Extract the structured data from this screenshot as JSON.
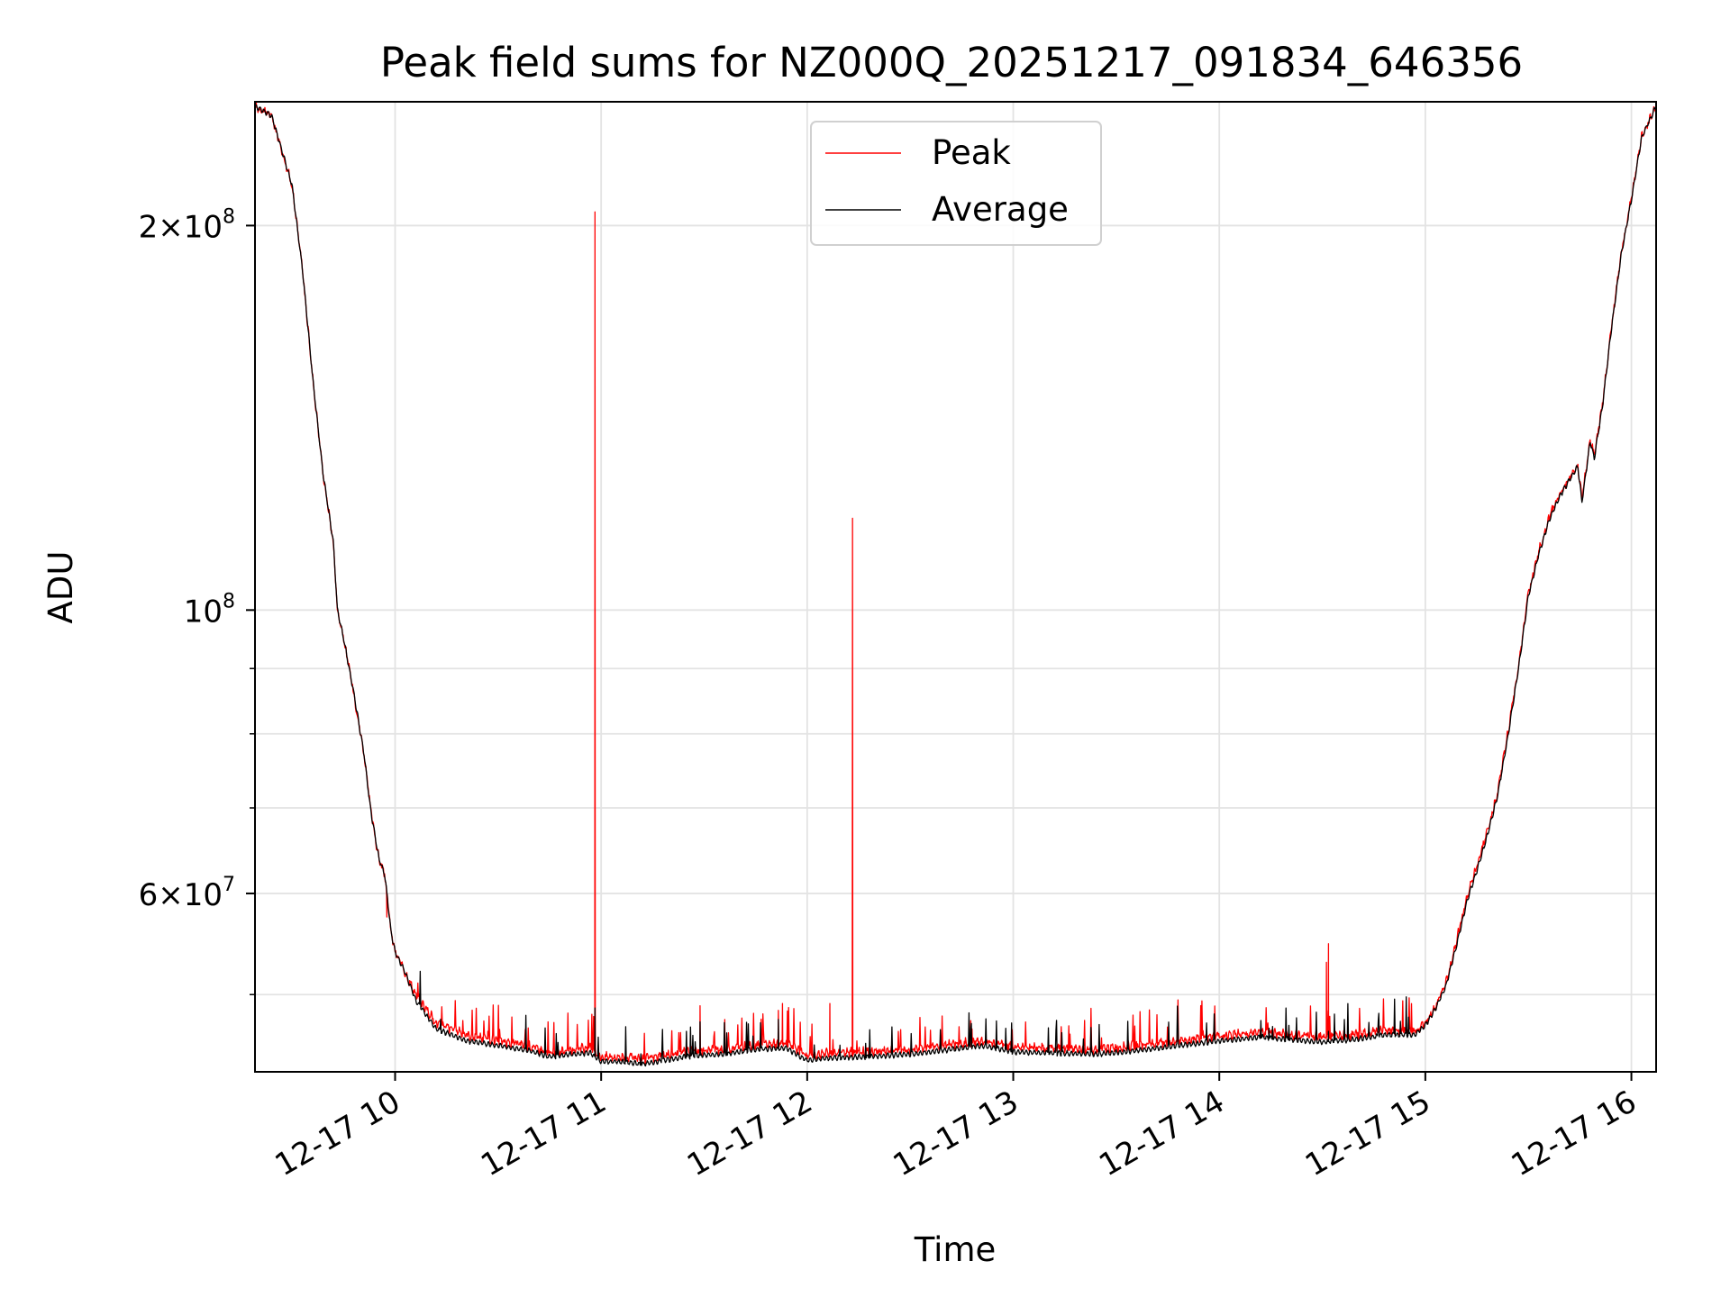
{
  "chart_data": {
    "type": "line",
    "title": "Peak field sums for NZ000Q_20251217_091834_646356",
    "xlabel": "Time",
    "ylabel": "ADU",
    "y_scale": "log",
    "xlim_hours": [
      9.32,
      16.12
    ],
    "ylim": [
      43500000,
      250000000
    ],
    "grid": true,
    "legend_position": "upper-center",
    "x_ticks": [
      {
        "hour": 10,
        "label": "12-17 10"
      },
      {
        "hour": 11,
        "label": "12-17 11"
      },
      {
        "hour": 12,
        "label": "12-17 12"
      },
      {
        "hour": 13,
        "label": "12-17 13"
      },
      {
        "hour": 14,
        "label": "12-17 14"
      },
      {
        "hour": 15,
        "label": "12-17 15"
      },
      {
        "hour": 16,
        "label": "12-17 16"
      }
    ],
    "y_ticks": [
      {
        "value": 200000000,
        "mantissa": "2×10",
        "exponent": "8"
      },
      {
        "value": 100000000,
        "mantissa": "10",
        "exponent": "8"
      },
      {
        "value": 60000000,
        "mantissa": "6×10",
        "exponent": "7"
      }
    ],
    "y_minor_ticks": [
      50000000,
      70000000,
      80000000,
      90000000
    ],
    "series": [
      {
        "name": "Peak",
        "color": "#ff0000",
        "baseline_points": [
          [
            9.32,
            248000000
          ],
          [
            9.4,
            244000000
          ],
          [
            9.5,
            215000000
          ],
          [
            9.55,
            185000000
          ],
          [
            9.6,
            152000000
          ],
          [
            9.65,
            128000000
          ],
          [
            9.7,
            113000000
          ],
          [
            9.72,
            100000000
          ],
          [
            9.75,
            95000000
          ],
          [
            9.8,
            86000000
          ],
          [
            9.85,
            77000000
          ],
          [
            9.88,
            70000000
          ],
          [
            9.92,
            64000000
          ],
          [
            9.95,
            62000000
          ],
          [
            9.98,
            56000000
          ],
          [
            10.0,
            54000000
          ],
          [
            10.05,
            52000000
          ],
          [
            10.1,
            50000000
          ],
          [
            10.2,
            47500000
          ],
          [
            10.35,
            46500000
          ],
          [
            10.5,
            46000000
          ],
          [
            10.65,
            45600000
          ],
          [
            10.75,
            45000000
          ],
          [
            10.85,
            45300000
          ],
          [
            10.95,
            45400000
          ],
          [
            11.0,
            44700000
          ],
          [
            11.1,
            44700000
          ],
          [
            11.2,
            44500000
          ],
          [
            11.3,
            44800000
          ],
          [
            11.45,
            45200000
          ],
          [
            11.6,
            45300000
          ],
          [
            11.75,
            45700000
          ],
          [
            11.9,
            45800000
          ],
          [
            12.0,
            44800000
          ],
          [
            12.1,
            45000000
          ],
          [
            12.3,
            45100000
          ],
          [
            12.5,
            45300000
          ],
          [
            12.7,
            45700000
          ],
          [
            12.85,
            46000000
          ],
          [
            13.0,
            45500000
          ],
          [
            13.2,
            45400000
          ],
          [
            13.4,
            45300000
          ],
          [
            13.6,
            45600000
          ],
          [
            13.8,
            46000000
          ],
          [
            14.0,
            46400000
          ],
          [
            14.2,
            46700000
          ],
          [
            14.35,
            46500000
          ],
          [
            14.5,
            46300000
          ],
          [
            14.65,
            46500000
          ],
          [
            14.8,
            46900000
          ],
          [
            14.95,
            46800000
          ],
          [
            15.0,
            47500000
          ],
          [
            15.05,
            49000000
          ],
          [
            15.1,
            51000000
          ],
          [
            15.15,
            55000000
          ],
          [
            15.2,
            59500000
          ],
          [
            15.25,
            63000000
          ],
          [
            15.3,
            67000000
          ],
          [
            15.35,
            72000000
          ],
          [
            15.4,
            80000000
          ],
          [
            15.45,
            90000000
          ],
          [
            15.5,
            103000000
          ],
          [
            15.55,
            111000000
          ],
          [
            15.6,
            118000000
          ],
          [
            15.65,
            123000000
          ],
          [
            15.7,
            127000000
          ],
          [
            15.74,
            130000000
          ],
          [
            15.76,
            122000000
          ],
          [
            15.8,
            136000000
          ],
          [
            15.82,
            132000000
          ],
          [
            15.86,
            145000000
          ],
          [
            15.9,
            165000000
          ],
          [
            15.95,
            190000000
          ],
          [
            16.0,
            210000000
          ],
          [
            16.05,
            235000000
          ],
          [
            16.12,
            248000000
          ]
        ],
        "spikes": [
          [
            9.96,
            57500000
          ],
          [
            10.45,
            46800000
          ],
          [
            10.97,
            205000000
          ],
          [
            11.48,
            49000000
          ],
          [
            11.6,
            47800000
          ],
          [
            11.86,
            48600000
          ],
          [
            11.88,
            49200000
          ],
          [
            12.11,
            49200000
          ],
          [
            12.22,
            118000000
          ],
          [
            12.8,
            47000000
          ],
          [
            14.52,
            53000000
          ],
          [
            14.53,
            54800000
          ]
        ]
      },
      {
        "name": "Average",
        "color": "#000000",
        "baseline_points": [
          [
            9.32,
            248000000
          ],
          [
            9.4,
            244000000
          ],
          [
            9.5,
            215000000
          ],
          [
            9.55,
            185000000
          ],
          [
            9.6,
            152000000
          ],
          [
            9.65,
            128000000
          ],
          [
            9.7,
            113000000
          ],
          [
            9.72,
            100000000
          ],
          [
            9.75,
            95000000
          ],
          [
            9.8,
            86000000
          ],
          [
            9.85,
            77000000
          ],
          [
            9.88,
            70000000
          ],
          [
            9.92,
            64000000
          ],
          [
            9.95,
            62000000
          ],
          [
            9.98,
            56000000
          ],
          [
            10.0,
            54000000
          ],
          [
            10.05,
            52000000
          ],
          [
            10.1,
            49500000
          ],
          [
            10.2,
            47000000
          ],
          [
            10.35,
            46000000
          ],
          [
            10.5,
            45600000
          ],
          [
            10.65,
            45200000
          ],
          [
            10.75,
            44700000
          ],
          [
            10.85,
            44900000
          ],
          [
            10.95,
            45000000
          ],
          [
            11.0,
            44300000
          ],
          [
            11.1,
            44300000
          ],
          [
            11.2,
            44100000
          ],
          [
            11.3,
            44400000
          ],
          [
            11.45,
            44800000
          ],
          [
            11.6,
            44900000
          ],
          [
            11.75,
            45300000
          ],
          [
            11.9,
            45400000
          ],
          [
            12.0,
            44400000
          ],
          [
            12.1,
            44600000
          ],
          [
            12.3,
            44700000
          ],
          [
            12.5,
            44900000
          ],
          [
            12.7,
            45300000
          ],
          [
            12.85,
            45600000
          ],
          [
            13.0,
            45100000
          ],
          [
            13.2,
            45000000
          ],
          [
            13.4,
            44900000
          ],
          [
            13.6,
            45200000
          ],
          [
            13.8,
            45600000
          ],
          [
            14.0,
            46000000
          ],
          [
            14.2,
            46300000
          ],
          [
            14.35,
            46100000
          ],
          [
            14.5,
            45900000
          ],
          [
            14.65,
            46100000
          ],
          [
            14.8,
            46500000
          ],
          [
            14.95,
            46500000
          ],
          [
            15.0,
            47300000
          ],
          [
            15.05,
            48800000
          ],
          [
            15.1,
            50800000
          ],
          [
            15.15,
            54500000
          ],
          [
            15.2,
            59000000
          ],
          [
            15.25,
            62500000
          ],
          [
            15.3,
            66500000
          ],
          [
            15.35,
            71500000
          ],
          [
            15.4,
            79500000
          ],
          [
            15.45,
            89500000
          ],
          [
            15.5,
            102500000
          ],
          [
            15.55,
            110500000
          ],
          [
            15.6,
            117500000
          ],
          [
            15.65,
            122500000
          ],
          [
            15.7,
            126500000
          ],
          [
            15.74,
            129500000
          ],
          [
            15.76,
            121500000
          ],
          [
            15.8,
            135500000
          ],
          [
            15.82,
            131500000
          ],
          [
            15.86,
            144500000
          ],
          [
            15.9,
            164500000
          ],
          [
            15.95,
            189500000
          ],
          [
            16.0,
            209500000
          ],
          [
            16.05,
            234500000
          ],
          [
            16.12,
            248000000
          ]
        ],
        "spikes": [
          [
            10.97,
            48800000
          ],
          [
            11.48,
            47600000
          ],
          [
            11.86,
            47800000
          ],
          [
            14.53,
            46800000
          ]
        ]
      }
    ]
  }
}
